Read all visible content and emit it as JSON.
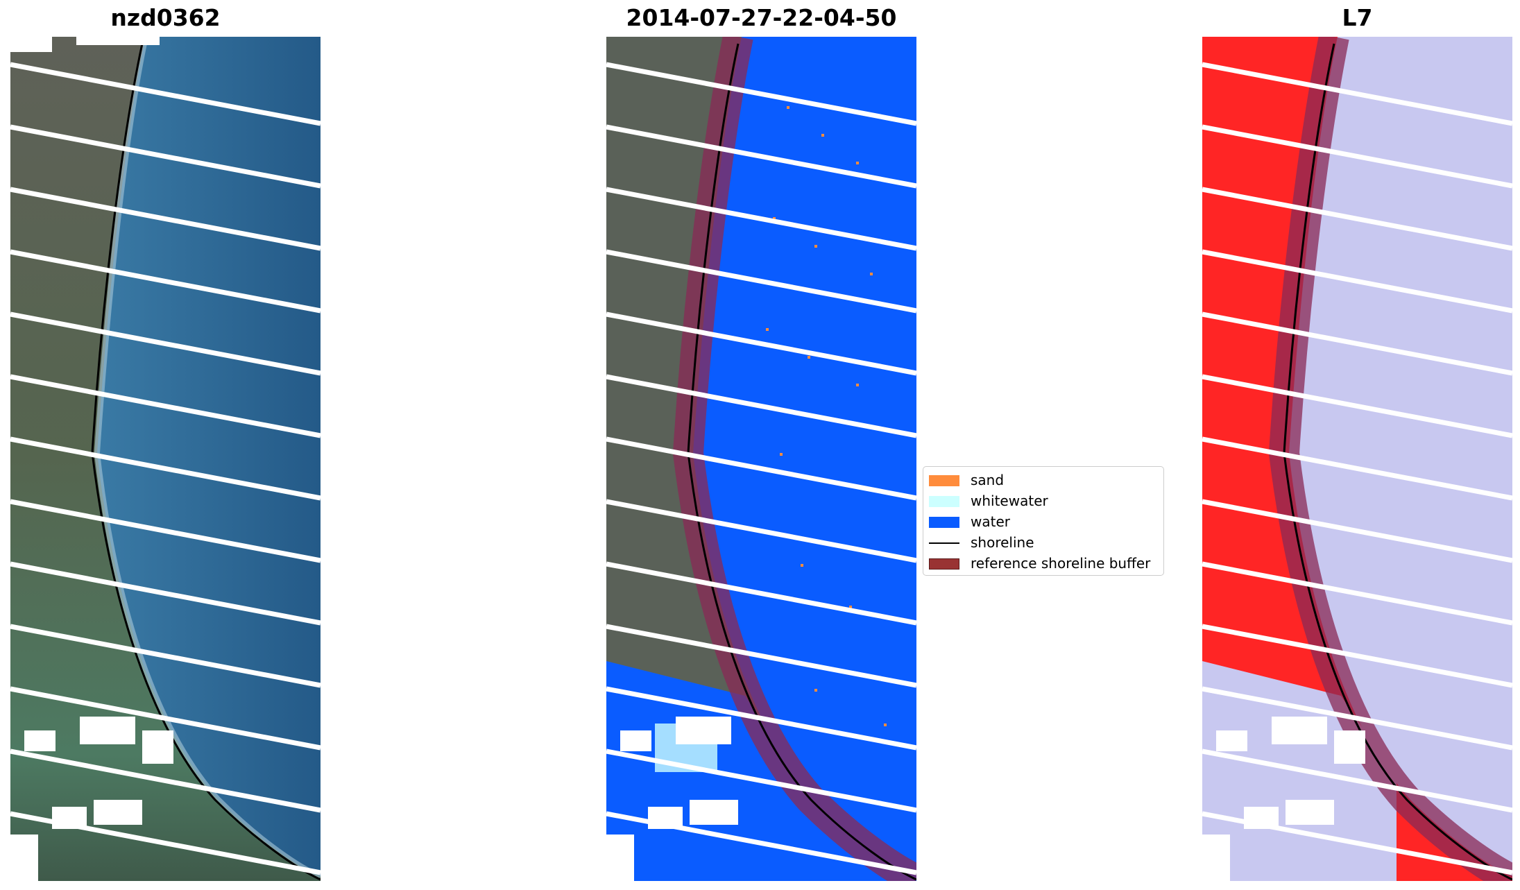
{
  "panels": [
    {
      "title": "nzd0362"
    },
    {
      "title": "2014-07-27-22-04-50"
    },
    {
      "title": "L7"
    }
  ],
  "legend": {
    "items": [
      {
        "label": "sand",
        "color": "#ff8c3c",
        "kind": "patch"
      },
      {
        "label": "whitewater",
        "color": "#ccffff",
        "kind": "patch"
      },
      {
        "label": "water",
        "color": "#0a5cff",
        "kind": "patch"
      },
      {
        "label": "shoreline",
        "color": "#000000",
        "kind": "line"
      },
      {
        "label": "reference shoreline buffer",
        "color": "#993333",
        "kind": "patch"
      }
    ]
  },
  "colors": {
    "land_rgb": "#5a6a55",
    "sea_rgb": "#2f6b99",
    "water_class": "#0a5cff",
    "land_false": "#ff2020",
    "sea_false": "#c8c8f0",
    "buffer": "#8a2a55"
  }
}
